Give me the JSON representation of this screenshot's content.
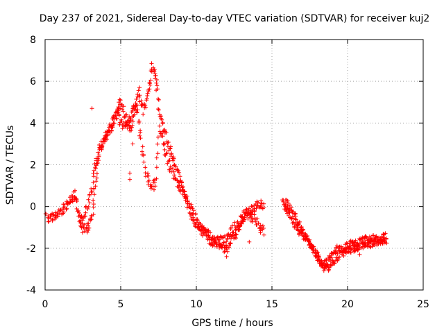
{
  "chart_data": {
    "type": "scatter",
    "title": "Day 237 of 2021, Sidereal Day-to-day VTEC variation (SDTVAR) for receiver kuj2",
    "xlabel": "GPS time / hours",
    "ylabel": "SDTVAR / TECUs",
    "xlim": [
      0,
      25
    ],
    "ylim": [
      -4,
      8
    ],
    "xticks": [
      0,
      5,
      10,
      15,
      20,
      25
    ],
    "yticks": [
      -4,
      -2,
      0,
      2,
      4,
      6,
      8
    ],
    "grid": true,
    "marker": "+",
    "color": "#ff0000",
    "series": [
      {
        "name": "SDTVAR",
        "trace_a": [
          [
            0.0,
            -0.5
          ],
          [
            0.3,
            -0.6
          ],
          [
            0.6,
            -0.5
          ],
          [
            0.9,
            -0.3
          ],
          [
            1.2,
            -0.1
          ],
          [
            1.5,
            0.1
          ],
          [
            1.8,
            0.4
          ],
          [
            2.0,
            0.6
          ],
          [
            2.2,
            -0.4
          ],
          [
            2.5,
            -1.1
          ],
          [
            2.8,
            -1.0
          ],
          [
            3.1,
            -0.6
          ],
          [
            3.3,
            1.0
          ],
          [
            3.6,
            2.8
          ],
          [
            3.9,
            3.3
          ],
          [
            4.2,
            3.6
          ],
          [
            4.5,
            4.0
          ],
          [
            4.8,
            4.5
          ],
          [
            5.0,
            5.0
          ],
          [
            5.3,
            4.3
          ],
          [
            5.6,
            3.6
          ],
          [
            5.9,
            4.5
          ],
          [
            6.2,
            5.5
          ],
          [
            6.5,
            4.6
          ],
          [
            6.8,
            5.4
          ],
          [
            7.1,
            6.7
          ],
          [
            7.3,
            6.2
          ],
          [
            7.6,
            4.5
          ],
          [
            7.9,
            3.6
          ],
          [
            8.2,
            2.8
          ],
          [
            8.5,
            2.1
          ],
          [
            8.8,
            1.5
          ],
          [
            9.1,
            0.9
          ],
          [
            9.4,
            0.2
          ],
          [
            9.7,
            -0.4
          ],
          [
            10.0,
            -0.8
          ],
          [
            10.3,
            -1.1
          ],
          [
            10.6,
            -1.3
          ],
          [
            10.9,
            -1.6
          ],
          [
            11.2,
            -1.7
          ],
          [
            11.5,
            -1.8
          ],
          [
            11.8,
            -2.0
          ],
          [
            12.1,
            -2.0
          ],
          [
            12.4,
            -1.6
          ],
          [
            12.7,
            -1.2
          ],
          [
            13.0,
            -0.8
          ],
          [
            13.3,
            -0.4
          ],
          [
            13.6,
            -0.2
          ],
          [
            13.9,
            0.0
          ],
          [
            14.2,
            0.1
          ],
          [
            14.5,
            0.0
          ]
        ],
        "trace_b": [
          [
            2.3,
            -0.6
          ],
          [
            2.6,
            -0.5
          ],
          [
            2.9,
            0.2
          ],
          [
            3.2,
            1.5
          ],
          [
            3.5,
            2.4
          ],
          [
            3.8,
            3.0
          ],
          [
            4.1,
            3.5
          ],
          [
            4.4,
            3.8
          ],
          [
            4.7,
            4.6
          ],
          [
            5.0,
            4.0
          ],
          [
            5.3,
            3.8
          ],
          [
            5.6,
            4.2
          ],
          [
            5.9,
            5.0
          ],
          [
            6.1,
            4.5
          ],
          [
            6.4,
            3.0
          ],
          [
            6.7,
            1.6
          ],
          [
            7.0,
            1.0
          ],
          [
            7.3,
            1.2
          ],
          [
            7.6,
            3.8
          ],
          [
            7.9,
            2.7
          ],
          [
            8.2,
            2.0
          ],
          [
            8.5,
            1.5
          ],
          [
            8.8,
            1.0
          ],
          [
            9.1,
            0.7
          ],
          [
            9.4,
            0.4
          ],
          [
            9.7,
            -0.1
          ],
          [
            10.0,
            -0.7
          ],
          [
            10.3,
            -1.0
          ],
          [
            10.6,
            -1.1
          ],
          [
            10.9,
            -1.3
          ],
          [
            11.2,
            -1.5
          ],
          [
            11.5,
            -1.6
          ],
          [
            11.8,
            -1.7
          ],
          [
            12.1,
            -1.4
          ],
          [
            12.4,
            -1.1
          ],
          [
            12.7,
            -0.9
          ],
          [
            13.0,
            -0.6
          ],
          [
            13.3,
            -0.3
          ],
          [
            13.6,
            -0.5
          ],
          [
            13.9,
            -0.6
          ],
          [
            14.2,
            -1.0
          ],
          [
            14.5,
            -1.2
          ]
        ],
        "trace_c": [
          [
            15.7,
            0.3
          ],
          [
            16.0,
            0.1
          ],
          [
            16.3,
            -0.2
          ],
          [
            16.6,
            -0.6
          ],
          [
            16.9,
            -1.0
          ],
          [
            17.2,
            -1.4
          ],
          [
            17.5,
            -1.8
          ],
          [
            17.8,
            -2.1
          ],
          [
            18.1,
            -2.5
          ],
          [
            18.4,
            -2.8
          ],
          [
            18.7,
            -2.6
          ],
          [
            19.0,
            -2.3
          ],
          [
            19.3,
            -2.0
          ],
          [
            19.6,
            -2.1
          ],
          [
            19.9,
            -1.9
          ],
          [
            20.2,
            -1.8
          ],
          [
            20.5,
            -1.8
          ],
          [
            20.8,
            -1.7
          ],
          [
            21.1,
            -1.6
          ],
          [
            21.4,
            -1.6
          ],
          [
            21.7,
            -1.5
          ],
          [
            22.0,
            -1.6
          ],
          [
            22.3,
            -1.5
          ],
          [
            22.5,
            -1.4
          ]
        ],
        "trace_d": [
          [
            15.8,
            0.0
          ],
          [
            16.1,
            -0.3
          ],
          [
            16.4,
            -0.7
          ],
          [
            16.7,
            -1.1
          ],
          [
            17.0,
            -1.4
          ],
          [
            17.3,
            -1.6
          ],
          [
            17.6,
            -1.9
          ],
          [
            17.9,
            -2.3
          ],
          [
            18.2,
            -2.7
          ],
          [
            18.5,
            -3.0
          ],
          [
            18.8,
            -2.9
          ],
          [
            19.1,
            -2.6
          ],
          [
            19.4,
            -2.4
          ],
          [
            19.7,
            -2.2
          ],
          [
            20.0,
            -2.1
          ],
          [
            20.3,
            -2.0
          ],
          [
            20.6,
            -2.0
          ],
          [
            20.9,
            -1.9
          ],
          [
            21.2,
            -1.8
          ],
          [
            21.5,
            -1.8
          ],
          [
            21.8,
            -1.7
          ],
          [
            22.1,
            -1.7
          ],
          [
            22.4,
            -1.6
          ],
          [
            22.6,
            -1.6
          ]
        ],
        "outliers": [
          [
            3.1,
            4.7
          ],
          [
            5.8,
            3.0
          ],
          [
            5.6,
            1.3
          ],
          [
            5.6,
            1.6
          ],
          [
            7.0,
            6.5
          ],
          [
            7.2,
            0.8
          ],
          [
            12.0,
            -2.4
          ],
          [
            18.5,
            -3.0
          ],
          [
            20.8,
            -2.3
          ],
          [
            14.2,
            -1.0
          ],
          [
            13.5,
            -1.7
          ],
          [
            16.8,
            -1.3
          ],
          [
            7.4,
            5.8
          ]
        ]
      }
    ]
  }
}
